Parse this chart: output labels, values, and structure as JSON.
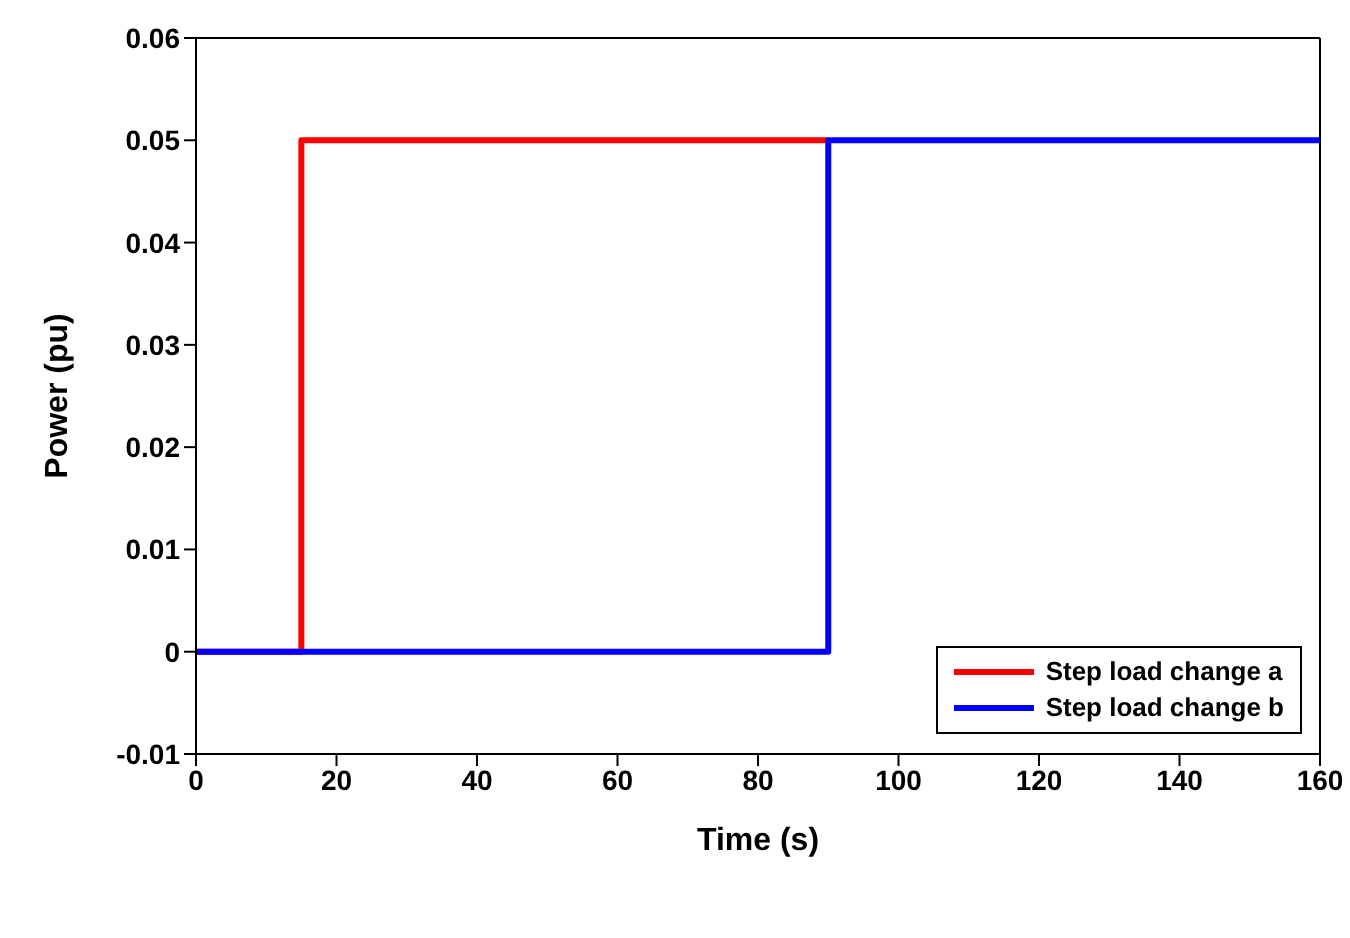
{
  "chart_data": {
    "type": "step",
    "xlabel": "Time (s)",
    "ylabel": "Power (pu)",
    "series": [
      {
        "name": "Step load change a",
        "color": "#ff0000",
        "x": [
          0,
          15,
          90
        ],
        "values": [
          0,
          0.05,
          0.05
        ]
      },
      {
        "name": "Step load change b",
        "color": "#0000ff",
        "x": [
          0,
          90,
          160
        ],
        "values": [
          0,
          0.05,
          0.05
        ]
      }
    ],
    "xlim": [
      0,
      160
    ],
    "xticks": [
      0,
      20,
      40,
      60,
      80,
      100,
      120,
      140,
      160
    ],
    "ylim": [
      -0.01,
      0.06
    ],
    "yticks": [
      -0.01,
      0,
      0.01,
      0.02,
      0.03,
      0.04,
      0.05,
      0.06
    ],
    "legend": "bottom right",
    "marker": "none",
    "line_style": "solid"
  }
}
